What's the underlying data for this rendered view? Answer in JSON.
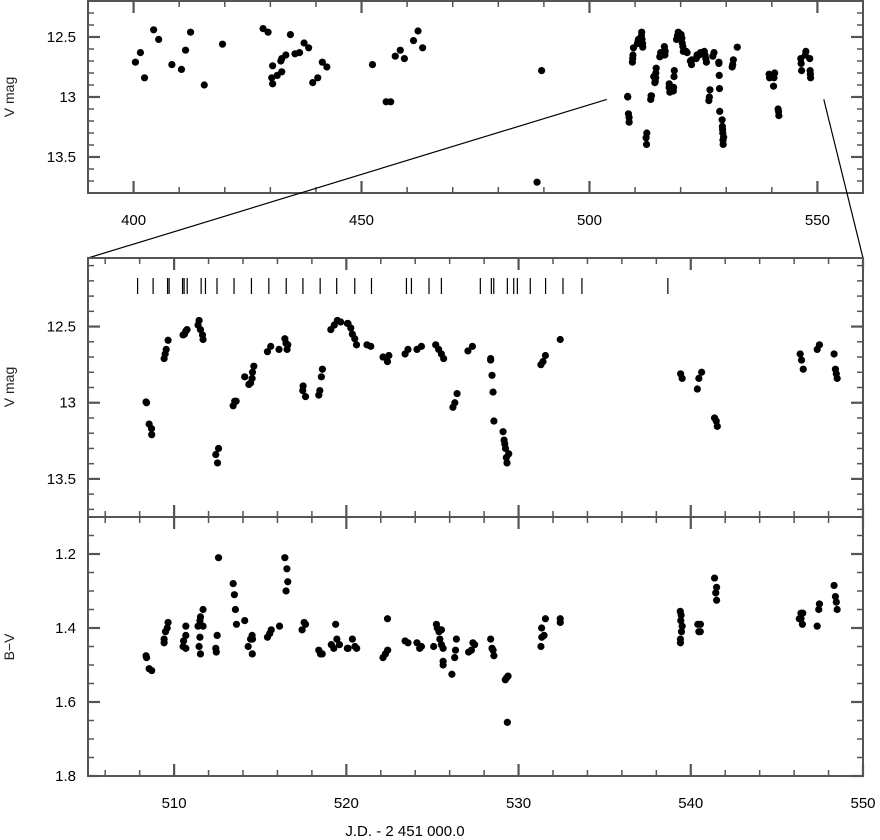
{
  "chart_data": [
    {
      "id": "overview",
      "type": "scatter",
      "xlabel": "",
      "ylabel": "V mag",
      "xlim": [
        390,
        560
      ],
      "ylim": [
        12.2,
        13.8
      ],
      "y_inverted": true,
      "x_ticks": [
        400,
        450,
        500,
        550
      ],
      "y_ticks": [
        "12.5",
        "13",
        "13.5"
      ],
      "y_tick_values": [
        12.5,
        13,
        13.5
      ],
      "points_early": [
        [
          400.4,
          12.71
        ],
        [
          401.5,
          12.63
        ],
        [
          402.4,
          12.84
        ],
        [
          404.4,
          12.44
        ],
        [
          405.5,
          12.52
        ],
        [
          408.4,
          12.73
        ],
        [
          410.5,
          12.77
        ],
        [
          411.4,
          12.61
        ],
        [
          412.5,
          12.46
        ],
        [
          415.5,
          12.9
        ],
        [
          419.5,
          12.56
        ],
        [
          428.4,
          12.43
        ],
        [
          429.5,
          12.46
        ],
        [
          430.5,
          12.74
        ],
        [
          430.3,
          12.84
        ],
        [
          430.5,
          12.89
        ],
        [
          431.5,
          12.82
        ],
        [
          432.5,
          12.79
        ],
        [
          432.3,
          12.7
        ],
        [
          432.5,
          12.68
        ],
        [
          433.4,
          12.65
        ],
        [
          434.4,
          12.48
        ],
        [
          435.4,
          12.64
        ],
        [
          436.4,
          12.63
        ],
        [
          437.4,
          12.55
        ],
        [
          438.4,
          12.59
        ],
        [
          439.3,
          12.88
        ],
        [
          440.4,
          12.84
        ],
        [
          441.4,
          12.71
        ],
        [
          442.4,
          12.75
        ],
        [
          452.4,
          12.73
        ],
        [
          455.4,
          13.04
        ],
        [
          456.4,
          13.04
        ],
        [
          457.4,
          12.66
        ],
        [
          458.5,
          12.61
        ],
        [
          459.4,
          12.68
        ],
        [
          461.4,
          12.53
        ],
        [
          462.4,
          12.45
        ],
        [
          463.4,
          12.59
        ],
        [
          488.5,
          13.71
        ],
        [
          489.5,
          12.78
        ]
      ],
      "note": "overview also shows all points of the V panel (JD >= 505)"
    },
    {
      "id": "v-panel",
      "type": "scatter",
      "xlabel": "",
      "ylabel": "V mag",
      "xlim": [
        505,
        550
      ],
      "ylim": [
        12.05,
        13.75
      ],
      "y_inverted": true,
      "y_ticks": [
        "12.5",
        "13",
        "13.5"
      ],
      "y_tick_values": [
        12.5,
        13,
        13.5
      ],
      "observation_marks": [
        507.88,
        508.78,
        509.62,
        509.71,
        510.49,
        510.58,
        510.76,
        511.57,
        511.82,
        512.49,
        513.48,
        514.49,
        515.5,
        516.51,
        517.48,
        518.48,
        519.44,
        520.49,
        521.46,
        523.49,
        523.78,
        524.8,
        525.52,
        527.78,
        528.42,
        528.56,
        529.35,
        529.72,
        529.93,
        530.68,
        531.57,
        532.58,
        533.68,
        538.67
      ],
      "points": [
        [
          508.37,
          12.995
        ],
        [
          508.4,
          13.0
        ],
        [
          508.55,
          13.14
        ],
        [
          508.69,
          13.17
        ],
        [
          508.7,
          13.21
        ],
        [
          509.42,
          12.71
        ],
        [
          509.48,
          12.68
        ],
        [
          509.54,
          12.65
        ],
        [
          509.65,
          12.59
        ],
        [
          510.52,
          12.555
        ],
        [
          510.6,
          12.55
        ],
        [
          510.68,
          12.53
        ],
        [
          510.75,
          12.52
        ],
        [
          511.45,
          12.46
        ],
        [
          511.39,
          12.49
        ],
        [
          511.53,
          12.52
        ],
        [
          511.65,
          12.555
        ],
        [
          511.68,
          12.585
        ],
        [
          512.42,
          13.34
        ],
        [
          512.58,
          13.3
        ],
        [
          512.52,
          13.395
        ],
        [
          513.43,
          13.02
        ],
        [
          513.52,
          12.99
        ],
        [
          513.6,
          12.99
        ],
        [
          514.1,
          12.83
        ],
        [
          514.34,
          12.88
        ],
        [
          514.44,
          12.87
        ],
        [
          514.53,
          12.84
        ],
        [
          514.55,
          12.8
        ],
        [
          514.63,
          12.76
        ],
        [
          515.42,
          12.665
        ],
        [
          515.61,
          12.63
        ],
        [
          516.09,
          12.65
        ],
        [
          516.43,
          12.58
        ],
        [
          516.5,
          12.61
        ],
        [
          516.56,
          12.65
        ],
        [
          516.6,
          12.62
        ],
        [
          517.49,
          12.89
        ],
        [
          517.47,
          12.92
        ],
        [
          517.63,
          12.96
        ],
        [
          518.4,
          12.95
        ],
        [
          518.46,
          12.92
        ],
        [
          518.55,
          12.83
        ],
        [
          518.61,
          12.78
        ],
        [
          519.1,
          12.52
        ],
        [
          519.3,
          12.49
        ],
        [
          519.48,
          12.46
        ],
        [
          519.67,
          12.47
        ],
        [
          520.06,
          12.48
        ],
        [
          520.1,
          12.48
        ],
        [
          520.26,
          12.51
        ],
        [
          520.35,
          12.55
        ],
        [
          520.49,
          12.58
        ],
        [
          520.59,
          12.62
        ],
        [
          521.2,
          12.62
        ],
        [
          521.42,
          12.63
        ],
        [
          522.13,
          12.7
        ],
        [
          522.39,
          12.73
        ],
        [
          522.47,
          12.69
        ],
        [
          523.41,
          12.68
        ],
        [
          523.58,
          12.65
        ],
        [
          524.1,
          12.65
        ],
        [
          524.36,
          12.63
        ],
        [
          525.19,
          12.62
        ],
        [
          525.36,
          12.65
        ],
        [
          525.52,
          12.68
        ],
        [
          525.65,
          12.71
        ],
        [
          526.19,
          13.03
        ],
        [
          526.3,
          13.0
        ],
        [
          526.43,
          12.94
        ],
        [
          527.06,
          12.66
        ],
        [
          527.32,
          12.63
        ],
        [
          528.38,
          12.71
        ],
        [
          528.38,
          12.72
        ],
        [
          528.46,
          12.82
        ],
        [
          528.52,
          12.93
        ],
        [
          528.57,
          13.12
        ],
        [
          529.1,
          13.19
        ],
        [
          529.16,
          13.245
        ],
        [
          529.2,
          13.27
        ],
        [
          529.24,
          13.3
        ],
        [
          529.43,
          13.335
        ],
        [
          529.29,
          13.36
        ],
        [
          529.33,
          13.395
        ],
        [
          531.3,
          12.75
        ],
        [
          531.42,
          12.73
        ],
        [
          531.56,
          12.69
        ],
        [
          532.42,
          12.585
        ],
        [
          539.41,
          12.81
        ],
        [
          539.5,
          12.84
        ],
        [
          540.47,
          12.84
        ],
        [
          540.63,
          12.8
        ],
        [
          540.38,
          12.91
        ],
        [
          541.38,
          13.1
        ],
        [
          541.48,
          13.12
        ],
        [
          541.54,
          13.155
        ],
        [
          546.35,
          12.68
        ],
        [
          546.43,
          12.72
        ],
        [
          546.53,
          12.78
        ],
        [
          547.34,
          12.65
        ],
        [
          547.47,
          12.62
        ],
        [
          548.32,
          12.68
        ],
        [
          548.4,
          12.78
        ],
        [
          548.45,
          12.81
        ],
        [
          548.5,
          12.84
        ]
      ]
    },
    {
      "id": "bv-panel",
      "type": "scatter",
      "xlabel": "J.D. - 2 451 000.0",
      "ylabel": "B−V",
      "xlim": [
        505,
        550
      ],
      "ylim": [
        1.1,
        1.8
      ],
      "y_inverted": true,
      "x_ticks": [
        510,
        520,
        530,
        540,
        550
      ],
      "y_ticks": [
        "1.2",
        "1.4",
        "1.6",
        "1.8"
      ],
      "y_tick_values": [
        1.2,
        1.4,
        1.6,
        1.8
      ],
      "points": [
        [
          508.37,
          1.475
        ],
        [
          508.4,
          1.48
        ],
        [
          508.55,
          1.51
        ],
        [
          508.7,
          1.515
        ],
        [
          509.42,
          1.44
        ],
        [
          509.42,
          1.43
        ],
        [
          509.5,
          1.41
        ],
        [
          509.6,
          1.4
        ],
        [
          509.65,
          1.385
        ],
        [
          510.52,
          1.45
        ],
        [
          510.55,
          1.435
        ],
        [
          510.68,
          1.42
        ],
        [
          510.68,
          1.395
        ],
        [
          510.68,
          1.455
        ],
        [
          511.45,
          1.45
        ],
        [
          511.53,
          1.47
        ],
        [
          511.5,
          1.425
        ],
        [
          511.39,
          1.395
        ],
        [
          511.5,
          1.38
        ],
        [
          511.53,
          1.37
        ],
        [
          511.68,
          1.35
        ],
        [
          511.68,
          1.395
        ],
        [
          512.5,
          1.42
        ],
        [
          512.42,
          1.455
        ],
        [
          512.45,
          1.465
        ],
        [
          512.58,
          1.21
        ],
        [
          513.43,
          1.28
        ],
        [
          513.5,
          1.31
        ],
        [
          513.56,
          1.35
        ],
        [
          513.62,
          1.39
        ],
        [
          514.1,
          1.38
        ],
        [
          514.3,
          1.45
        ],
        [
          514.44,
          1.43
        ],
        [
          514.53,
          1.42
        ],
        [
          514.55,
          1.43
        ],
        [
          514.54,
          1.47
        ],
        [
          515.42,
          1.425
        ],
        [
          515.55,
          1.415
        ],
        [
          515.64,
          1.405
        ],
        [
          516.12,
          1.395
        ],
        [
          516.43,
          1.21
        ],
        [
          516.55,
          1.24
        ],
        [
          516.6,
          1.275
        ],
        [
          516.5,
          1.3
        ],
        [
          517.43,
          1.405
        ],
        [
          517.55,
          1.385
        ],
        [
          517.63,
          1.39
        ],
        [
          518.4,
          1.46
        ],
        [
          518.5,
          1.47
        ],
        [
          518.6,
          1.47
        ],
        [
          519.13,
          1.445
        ],
        [
          519.27,
          1.455
        ],
        [
          519.38,
          1.39
        ],
        [
          519.45,
          1.43
        ],
        [
          519.6,
          1.445
        ],
        [
          520.06,
          1.455
        ],
        [
          520.1,
          1.455
        ],
        [
          520.35,
          1.43
        ],
        [
          520.5,
          1.45
        ],
        [
          520.6,
          1.455
        ],
        [
          522.13,
          1.48
        ],
        [
          522.27,
          1.47
        ],
        [
          522.4,
          1.46
        ],
        [
          522.39,
          1.375
        ],
        [
          523.41,
          1.435
        ],
        [
          523.58,
          1.44
        ],
        [
          524.1,
          1.44
        ],
        [
          524.26,
          1.455
        ],
        [
          524.36,
          1.45
        ],
        [
          525.07,
          1.45
        ],
        [
          525.23,
          1.39
        ],
        [
          525.28,
          1.4
        ],
        [
          525.38,
          1.41
        ],
        [
          525.52,
          1.405
        ],
        [
          525.43,
          1.43
        ],
        [
          525.52,
          1.445
        ],
        [
          525.62,
          1.455
        ],
        [
          525.62,
          1.49
        ],
        [
          525.62,
          1.5
        ],
        [
          526.13,
          1.525
        ],
        [
          526.29,
          1.48
        ],
        [
          526.34,
          1.46
        ],
        [
          526.39,
          1.43
        ],
        [
          527.1,
          1.465
        ],
        [
          527.26,
          1.46
        ],
        [
          527.35,
          1.44
        ],
        [
          527.45,
          1.445
        ],
        [
          528.38,
          1.43
        ],
        [
          528.46,
          1.455
        ],
        [
          528.52,
          1.46
        ],
        [
          528.57,
          1.475
        ],
        [
          529.23,
          1.54
        ],
        [
          529.39,
          1.53
        ],
        [
          529.3,
          1.535
        ],
        [
          529.35,
          1.655
        ],
        [
          531.3,
          1.45
        ],
        [
          531.35,
          1.425
        ],
        [
          531.34,
          1.4
        ],
        [
          531.48,
          1.42
        ],
        [
          531.56,
          1.375
        ],
        [
          532.42,
          1.375
        ],
        [
          532.42,
          1.385
        ],
        [
          539.39,
          1.355
        ],
        [
          539.44,
          1.365
        ],
        [
          539.42,
          1.38
        ],
        [
          539.5,
          1.395
        ],
        [
          539.46,
          1.41
        ],
        [
          539.4,
          1.43
        ],
        [
          539.4,
          1.44
        ],
        [
          540.41,
          1.39
        ],
        [
          540.56,
          1.39
        ],
        [
          540.47,
          1.41
        ],
        [
          540.55,
          1.41
        ],
        [
          541.38,
          1.265
        ],
        [
          541.5,
          1.29
        ],
        [
          541.45,
          1.305
        ],
        [
          541.5,
          1.325
        ],
        [
          546.4,
          1.36
        ],
        [
          546.5,
          1.36
        ],
        [
          546.3,
          1.375
        ],
        [
          546.4,
          1.375
        ],
        [
          546.48,
          1.39
        ],
        [
          547.34,
          1.395
        ],
        [
          547.43,
          1.35
        ],
        [
          547.47,
          1.335
        ],
        [
          548.32,
          1.285
        ],
        [
          548.4,
          1.315
        ],
        [
          548.45,
          1.33
        ],
        [
          548.5,
          1.35
        ]
      ]
    }
  ]
}
